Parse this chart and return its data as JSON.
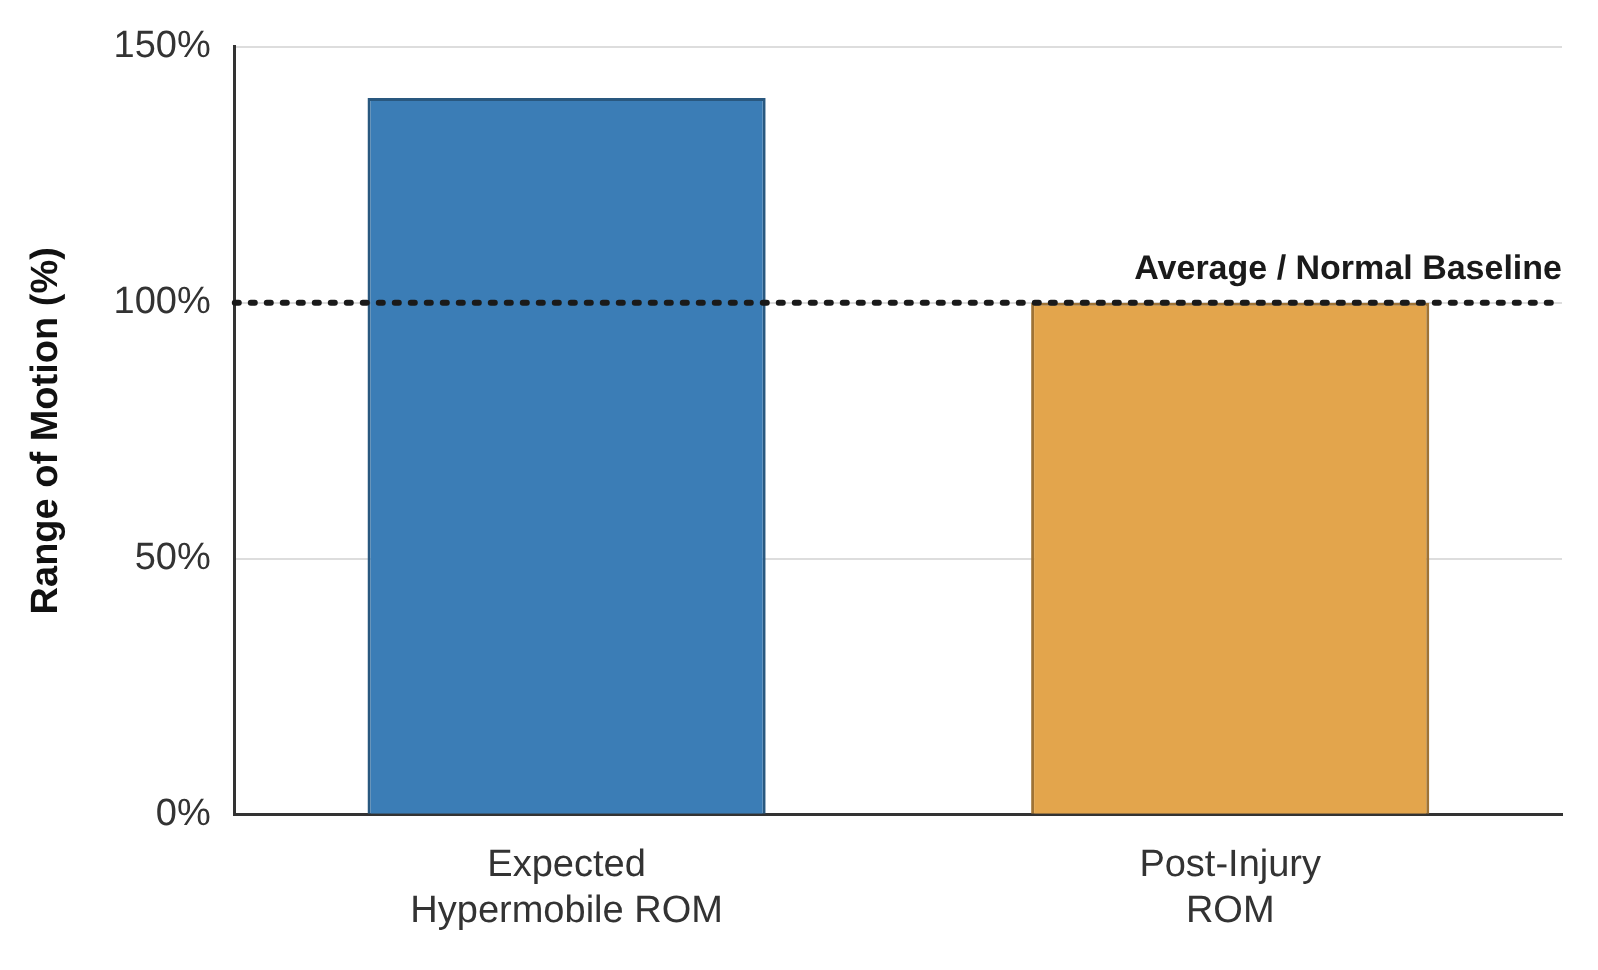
{
  "chart_data": {
    "type": "bar",
    "ylabel": "Range of Motion (%)",
    "categories": [
      "Expected\nHypermobile ROM",
      "Post-Injury\nROM"
    ],
    "values": [
      140,
      100
    ],
    "colors": [
      "#3b7db6",
      "#e3a54c"
    ],
    "ylim": [
      0,
      150
    ],
    "yticks": [
      {
        "value": 0,
        "label": "0%"
      },
      {
        "value": 50,
        "label": "50%"
      },
      {
        "value": 100,
        "label": "100%"
      },
      {
        "value": 150,
        "label": "150%"
      }
    ],
    "grid": "y",
    "legend": false,
    "ref_lines": [
      {
        "axis": "y",
        "value": 100,
        "label": "Average / Normal Baseline",
        "color": "#1a1a1a",
        "line_style": "dotted"
      }
    ]
  }
}
